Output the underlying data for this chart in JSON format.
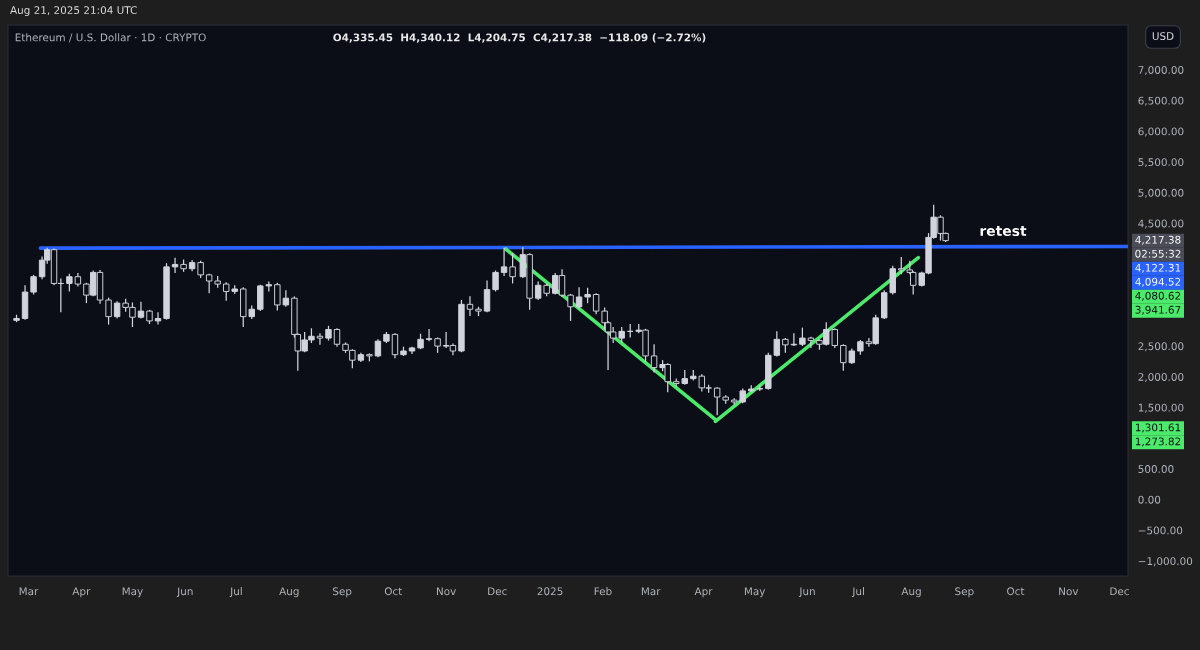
{
  "chart_data": {
    "type": "candlestick",
    "title": "Ethereum / U.S. Dollar · 1D · CRYPTO",
    "subtitle": "O4,335.45  H4,340.12  L4,204.75  C4,217.38  −118.09 (−2.72%)",
    "ylabel": "USD",
    "color": "#d1d4dc",
    "x": [
      "2024-02-23",
      "2024-02-28",
      "2024-03-04",
      "2024-03-09",
      "2024-03-12",
      "2024-03-16",
      "2024-03-20",
      "2024-03-25",
      "2024-03-30",
      "2024-04-04",
      "2024-04-08",
      "2024-04-12",
      "2024-04-17",
      "2024-04-22",
      "2024-04-27",
      "2024-05-01",
      "2024-05-06",
      "2024-05-11",
      "2024-05-16",
      "2024-05-21",
      "2024-05-26",
      "2024-05-31",
      "2024-06-05",
      "2024-06-10",
      "2024-06-15",
      "2024-06-20",
      "2024-06-25",
      "2024-06-30",
      "2024-07-05",
      "2024-07-10",
      "2024-07-15",
      "2024-07-20",
      "2024-07-25",
      "2024-07-30",
      "2024-08-04",
      "2024-08-06",
      "2024-08-10",
      "2024-08-14",
      "2024-08-19",
      "2024-08-24",
      "2024-08-29",
      "2024-09-03",
      "2024-09-07",
      "2024-09-12",
      "2024-09-17",
      "2024-09-22",
      "2024-09-27",
      "2024-10-02",
      "2024-10-07",
      "2024-10-12",
      "2024-10-17",
      "2024-10-22",
      "2024-10-27",
      "2024-11-01",
      "2024-11-05",
      "2024-11-10",
      "2024-11-15",
      "2024-11-20",
      "2024-11-25",
      "2024-11-30",
      "2024-12-05",
      "2024-12-10",
      "2024-12-16",
      "2024-12-20",
      "2024-12-25",
      "2024-12-30",
      "2025-01-04",
      "2025-01-08",
      "2025-01-13",
      "2025-01-18",
      "2025-01-23",
      "2025-01-28",
      "2025-02-02",
      "2025-02-04",
      "2025-02-07",
      "2025-02-12",
      "2025-02-17",
      "2025-02-22",
      "2025-02-26",
      "2025-03-03",
      "2025-03-08",
      "2025-03-11",
      "2025-03-16",
      "2025-03-21",
      "2025-03-26",
      "2025-03-31",
      "2025-04-04",
      "2025-04-09",
      "2025-04-14",
      "2025-04-19",
      "2025-04-24",
      "2025-04-29",
      "2025-05-04",
      "2025-05-09",
      "2025-05-14",
      "2025-05-19",
      "2025-05-24",
      "2025-05-29",
      "2025-06-03",
      "2025-06-08",
      "2025-06-12",
      "2025-06-17",
      "2025-06-22",
      "2025-06-27",
      "2025-07-02",
      "2025-07-07",
      "2025-07-11",
      "2025-07-16",
      "2025-07-21",
      "2025-07-26",
      "2025-07-31",
      "2025-08-02",
      "2025-08-07",
      "2025-08-11",
      "2025-08-14",
      "2025-08-18",
      "2025-08-21"
    ],
    "ohlc": [
      [
        2920,
        3000,
        2900,
        2950
      ],
      [
        2950,
        3480,
        2940,
        3380
      ],
      [
        3380,
        3650,
        3350,
        3630
      ],
      [
        3630,
        3950,
        3600,
        3900
      ],
      [
        3900,
        4090,
        3850,
        4070
      ],
      [
        4070,
        4080,
        3500,
        3520
      ],
      [
        3520,
        3590,
        3060,
        3520
      ],
      [
        3520,
        3670,
        3400,
        3630
      ],
      [
        3630,
        3680,
        3480,
        3510
      ],
      [
        3510,
        3520,
        3210,
        3330
      ],
      [
        3330,
        3720,
        3320,
        3700
      ],
      [
        3700,
        3730,
        3200,
        3250
      ],
      [
        3250,
        3280,
        2860,
        2980
      ],
      [
        2980,
        3220,
        2960,
        3200
      ],
      [
        3200,
        3260,
        3070,
        3130
      ],
      [
        3130,
        3200,
        2820,
        2970
      ],
      [
        2970,
        3210,
        2960,
        3070
      ],
      [
        3070,
        3080,
        2870,
        2910
      ],
      [
        2910,
        3040,
        2860,
        2950
      ],
      [
        2950,
        3840,
        2940,
        3790
      ],
      [
        3790,
        3930,
        3700,
        3830
      ],
      [
        3830,
        3900,
        3720,
        3760
      ],
      [
        3760,
        3890,
        3730,
        3860
      ],
      [
        3860,
        3880,
        3620,
        3660
      ],
      [
        3660,
        3670,
        3370,
        3560
      ],
      [
        3560,
        3630,
        3460,
        3510
      ],
      [
        3510,
        3530,
        3250,
        3390
      ],
      [
        3390,
        3480,
        3360,
        3430
      ],
      [
        3430,
        3450,
        2820,
        2980
      ],
      [
        2980,
        3150,
        2950,
        3100
      ],
      [
        3100,
        3490,
        3080,
        3480
      ],
      [
        3480,
        3540,
        3400,
        3500
      ],
      [
        3500,
        3520,
        3090,
        3170
      ],
      [
        3170,
        3400,
        3150,
        3280
      ],
      [
        3280,
        3300,
        2650,
        2690
      ],
      [
        2690,
        2700,
        2110,
        2420
      ],
      [
        2420,
        2720,
        2410,
        2600
      ],
      [
        2600,
        2780,
        2560,
        2660
      ],
      [
        2660,
        2700,
        2530,
        2630
      ],
      [
        2630,
        2820,
        2600,
        2770
      ],
      [
        2770,
        2780,
        2500,
        2530
      ],
      [
        2530,
        2550,
        2400,
        2430
      ],
      [
        2430,
        2440,
        2150,
        2270
      ],
      [
        2270,
        2380,
        2250,
        2360
      ],
      [
        2360,
        2370,
        2260,
        2340
      ],
      [
        2340,
        2600,
        2330,
        2580
      ],
      [
        2580,
        2720,
        2560,
        2690
      ],
      [
        2690,
        2700,
        2310,
        2360
      ],
      [
        2360,
        2480,
        2350,
        2420
      ],
      [
        2420,
        2480,
        2380,
        2470
      ],
      [
        2470,
        2690,
        2460,
        2610
      ],
      [
        2610,
        2770,
        2590,
        2620
      ],
      [
        2620,
        2630,
        2400,
        2500
      ],
      [
        2500,
        2720,
        2480,
        2510
      ],
      [
        2510,
        2530,
        2360,
        2420
      ],
      [
        2420,
        3240,
        2410,
        3180
      ],
      [
        3180,
        3300,
        3000,
        3100
      ],
      [
        3100,
        3130,
        3000,
        3070
      ],
      [
        3070,
        3560,
        3060,
        3420
      ],
      [
        3420,
        3720,
        3400,
        3700
      ],
      [
        3700,
        4090,
        3650,
        3790
      ],
      [
        3790,
        4000,
        3530,
        3630
      ],
      [
        3630,
        4100,
        3620,
        3990
      ],
      [
        3990,
        4000,
        3100,
        3280
      ],
      [
        3280,
        3540,
        3260,
        3490
      ],
      [
        3490,
        3510,
        3320,
        3360
      ],
      [
        3360,
        3680,
        3350,
        3650
      ],
      [
        3650,
        3740,
        3310,
        3330
      ],
      [
        3330,
        3340,
        2920,
        3140
      ],
      [
        3140,
        3450,
        3120,
        3300
      ],
      [
        3300,
        3440,
        3210,
        3340
      ],
      [
        3340,
        3350,
        3030,
        3070
      ],
      [
        3070,
        3120,
        2780,
        2880
      ],
      [
        2880,
        2900,
        2120,
        2730
      ],
      [
        2730,
        2800,
        2560,
        2630
      ],
      [
        2630,
        2800,
        2570,
        2740
      ],
      [
        2740,
        2850,
        2650,
        2740
      ],
      [
        2740,
        2850,
        2720,
        2760
      ],
      [
        2760,
        2770,
        2250,
        2340
      ],
      [
        2340,
        2520,
        2080,
        2150
      ],
      [
        2150,
        2260,
        2100,
        2200
      ],
      [
        2200,
        2210,
        1760,
        1920
      ],
      [
        1920,
        1960,
        1850,
        1890
      ],
      [
        1890,
        2100,
        1880,
        1970
      ],
      [
        1970,
        2100,
        1950,
        2010
      ],
      [
        2010,
        2030,
        1770,
        1820
      ],
      [
        1820,
        1860,
        1750,
        1815
      ],
      [
        1815,
        1820,
        1385,
        1670
      ],
      [
        1670,
        1690,
        1570,
        1620
      ],
      [
        1620,
        1640,
        1560,
        1590
      ],
      [
        1590,
        1800,
        1580,
        1770
      ],
      [
        1770,
        1850,
        1760,
        1800
      ],
      [
        1800,
        1860,
        1780,
        1810
      ],
      [
        1810,
        2380,
        1800,
        2350
      ],
      [
        2350,
        2730,
        2340,
        2610
      ],
      [
        2610,
        2620,
        2400,
        2520
      ],
      [
        2520,
        2700,
        2510,
        2530
      ],
      [
        2530,
        2790,
        2510,
        2630
      ],
      [
        2630,
        2640,
        2480,
        2590
      ],
      [
        2590,
        2600,
        2450,
        2530
      ],
      [
        2530,
        2880,
        2520,
        2770
      ],
      [
        2770,
        2780,
        2480,
        2510
      ],
      [
        2510,
        2520,
        2110,
        2230
      ],
      [
        2230,
        2450,
        2220,
        2420
      ],
      [
        2420,
        2590,
        2370,
        2570
      ],
      [
        2570,
        2620,
        2500,
        2540
      ],
      [
        2540,
        3000,
        2530,
        2960
      ],
      [
        2960,
        3400,
        2950,
        3370
      ],
      [
        3370,
        3800,
        3350,
        3760
      ],
      [
        3760,
        3940,
        3680,
        3740
      ],
      [
        3740,
        3880,
        3680,
        3700
      ],
      [
        3700,
        3710,
        3350,
        3490
      ],
      [
        3490,
        3700,
        3480,
        3690
      ],
      [
        3690,
        4330,
        3680,
        4270
      ],
      [
        4270,
        4790,
        4260,
        4600
      ],
      [
        4600,
        4620,
        4230,
        4335
      ],
      [
        4335.45,
        4340.12,
        4204.75,
        4217.38
      ]
    ],
    "series": [
      {
        "type": "line",
        "color": "#2962ff",
        "x": [
          "2024-03-08",
          "2025-12-06"
        ],
        "values": [
          4095,
          4122
        ]
      },
      {
        "type": "line",
        "color": "#4cea6b",
        "x": [
          "2024-12-06",
          "2025-04-08"
        ],
        "values": [
          4081,
          1302
        ]
      },
      {
        "type": "line",
        "color": "#4cea6b",
        "x": [
          "2025-04-08",
          "2025-08-05"
        ],
        "values": [
          1274,
          3942
        ]
      }
    ],
    "xlim": [
      "2024-02-18",
      "2025-12-06"
    ],
    "xticks": [
      {
        "value": "2024-03-01",
        "label": "Mar"
      },
      {
        "value": "2024-04-01",
        "label": "Apr"
      },
      {
        "value": "2024-05-01",
        "label": "May"
      },
      {
        "value": "2024-06-01",
        "label": "Jun"
      },
      {
        "value": "2024-07-01",
        "label": "Jul"
      },
      {
        "value": "2024-08-01",
        "label": "Aug"
      },
      {
        "value": "2024-09-01",
        "label": "Sep"
      },
      {
        "value": "2024-10-01",
        "label": "Oct"
      },
      {
        "value": "2024-11-01",
        "label": "Nov"
      },
      {
        "value": "2024-12-01",
        "label": "Dec"
      },
      {
        "value": "2025-01-01",
        "label": "2025"
      },
      {
        "value": "2025-02-01",
        "label": "Feb"
      },
      {
        "value": "2025-03-01",
        "label": "Mar"
      },
      {
        "value": "2025-04-01",
        "label": "Apr"
      },
      {
        "value": "2025-05-01",
        "label": "May"
      },
      {
        "value": "2025-06-01",
        "label": "Jun"
      },
      {
        "value": "2025-07-01",
        "label": "Jul"
      },
      {
        "value": "2025-08-01",
        "label": "Aug"
      },
      {
        "value": "2025-09-01",
        "label": "Sep"
      },
      {
        "value": "2025-10-01",
        "label": "Oct"
      },
      {
        "value": "2025-11-01",
        "label": "Nov"
      },
      {
        "value": "2025-12-01",
        "label": "Dec"
      }
    ],
    "ylim": [
      -1245,
      7730
    ],
    "yticks": [
      {
        "value": 7000,
        "label": "7,000.00"
      },
      {
        "value": 6500,
        "label": "6,500.00"
      },
      {
        "value": 6000,
        "label": "6,000.00"
      },
      {
        "value": 5500,
        "label": "5,500.00"
      },
      {
        "value": 5000,
        "label": "5,000.00"
      },
      {
        "value": 4500,
        "label": "4,500.00"
      },
      {
        "value": 2500,
        "label": "2,500.00"
      },
      {
        "value": 2000,
        "label": "2,000.00"
      },
      {
        "value": 1500,
        "label": "1,500.00"
      },
      {
        "value": 500,
        "label": "500.00"
      },
      {
        "value": 0,
        "label": "0.00"
      },
      {
        "value": -500,
        "label": "−500.00"
      },
      {
        "value": -1000,
        "label": "−1,000.00"
      }
    ],
    "grid": false,
    "legend": false,
    "annotations": [
      "Aug 21, 2025 21:04 UTC",
      "retest",
      "4,217.38",
      "02:55:32",
      "4,122.31",
      "4,094.52",
      "4,080.62",
      "3,941.67",
      "1,301.61",
      "1,273.82"
    ]
  }
}
